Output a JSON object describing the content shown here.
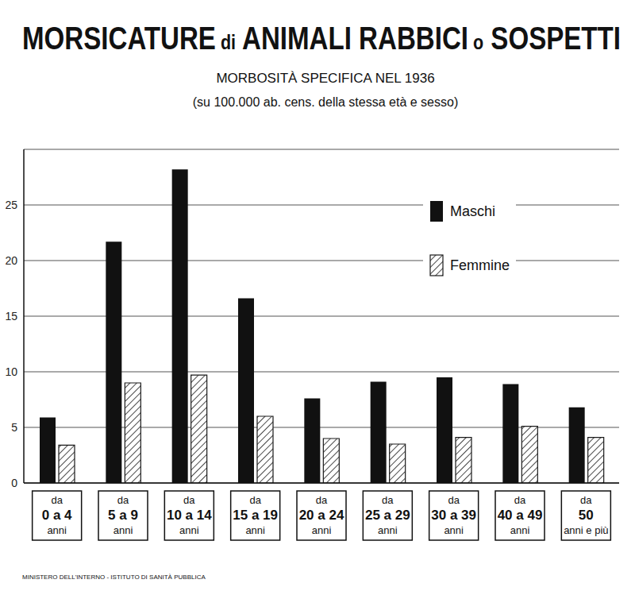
{
  "chart_data": {
    "type": "bar",
    "title": "MORSICATURE di ANIMALI RABBICI o SOSPETTI",
    "subtitle": "MORBOSITÀ SPECIFICA NEL 1936",
    "subtitle_note": "(su 100.000 ab. cens. della stessa età e sesso)",
    "source": "MINISTERO DELL'INTERNO - ISTITUTO DI SANITÀ PUBBLICA",
    "categories": [
      "da 0 a 4 anni",
      "da 5 a 9 anni",
      "da 10 a 14 anni",
      "da 15 a 19 anni",
      "da 20 a 24 anni",
      "da 25 a 29 anni",
      "da 30 a 39 anni",
      "da 40 a 49 anni",
      "da 50 anni e più"
    ],
    "series": [
      {
        "name": "Maschi",
        "color": "#111111",
        "values": [
          5.9,
          21.7,
          28.2,
          16.6,
          7.6,
          9.1,
          9.5,
          8.9,
          6.8
        ]
      },
      {
        "name": "Femmine",
        "color": "#1a1a1a",
        "values": [
          3.4,
          9.0,
          9.7,
          6.0,
          4.0,
          3.5,
          4.1,
          5.1,
          4.1
        ]
      }
    ],
    "ylim": [
      0,
      30
    ],
    "yticks": [
      0,
      5,
      10,
      15,
      20,
      25
    ],
    "grid": true,
    "legend": "upper right"
  }
}
